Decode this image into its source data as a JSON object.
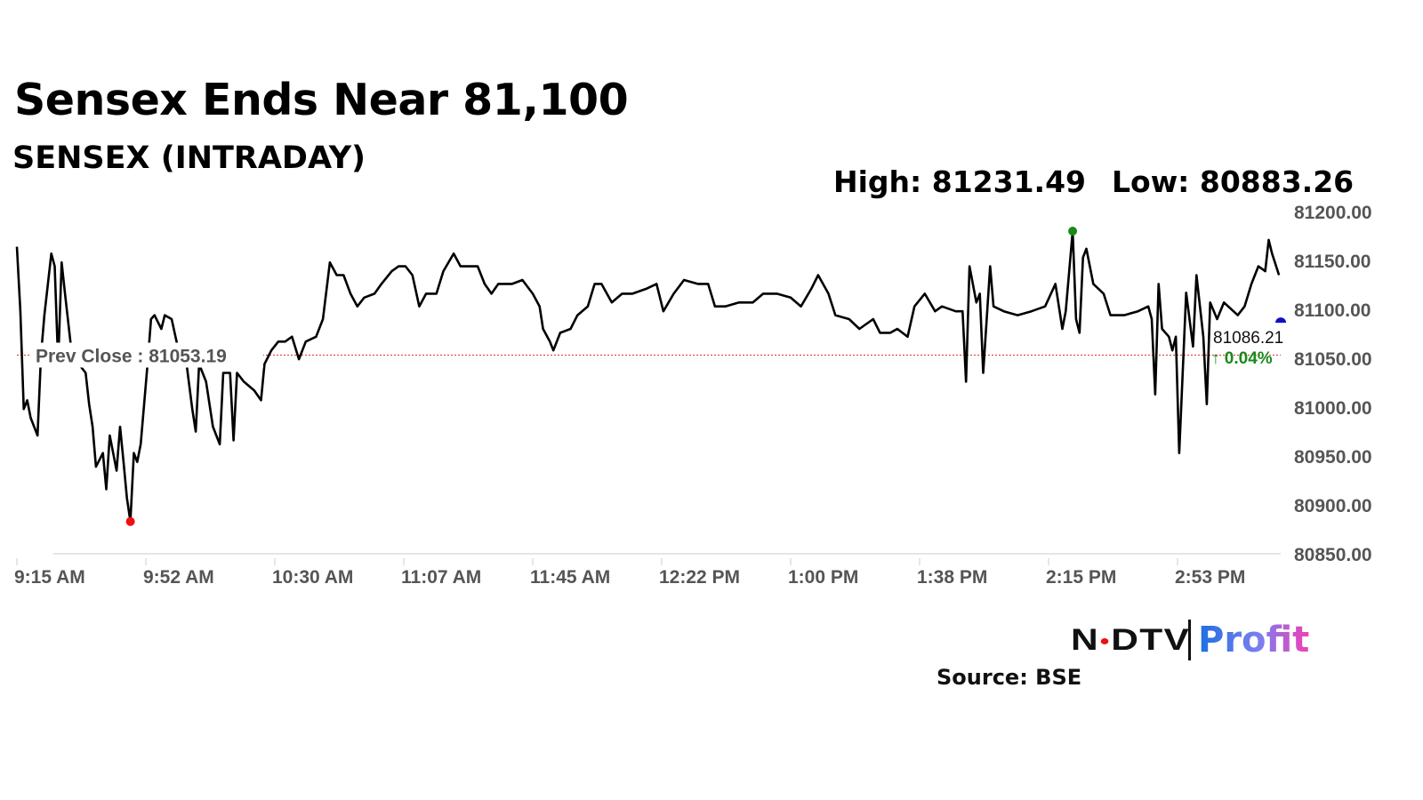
{
  "header": {
    "title": "Sensex Ends Near 81,100",
    "subtitle": "SENSEX (INTRADAY)",
    "high_label": "High: 81231.49",
    "low_label": "Low: 80883.26"
  },
  "chart_data": {
    "type": "line",
    "title": "SENSEX (INTRADAY)",
    "xlim": [
      "9:15",
      "15:30"
    ],
    "ylim": [
      80850,
      81200
    ],
    "x_tick_labels": [
      "9:15 AM",
      "9:52 AM",
      "10:30 AM",
      "11:07 AM",
      "11:45 AM",
      "12:22 PM",
      "1:00 PM",
      "1:38 PM",
      "2:15 PM",
      "2:53 PM"
    ],
    "x_ticks": [
      "9:15",
      "9:52",
      "10:30",
      "11:07",
      "11:45",
      "12:22",
      "13:00",
      "13:38",
      "14:15",
      "14:53"
    ],
    "y_ticks": [
      81200,
      81150,
      81100,
      81050,
      81000,
      80950,
      80900,
      80850
    ],
    "y_tick_labels": [
      "81200.00",
      "81150.00",
      "81100.00",
      "81050.00",
      "81000.00",
      "80950.00",
      "80900.00",
      "80850.00"
    ],
    "grid": false,
    "prev_close": 81053.19,
    "prev_close_label": "Prev Close : 81053.19",
    "last_value_label": "81086.21",
    "change_label": "↑ 0.04%",
    "colors": {
      "line": "#000000",
      "prev_close": "#e03030",
      "high_marker": "#1a8a1a",
      "low_marker": "#ee1111",
      "last_marker": "#1010c0",
      "change": "#1a8a1a",
      "axis_text": "#555555"
    },
    "series": [
      {
        "x": [
          "9:15",
          "9:16",
          "9:17",
          "9:18",
          "9:19",
          "9:21",
          "9:22",
          "9:23",
          "9:25",
          "9:26",
          "9:27",
          "9:28",
          "9:29",
          "9:31",
          "9:33",
          "9:35",
          "9:36",
          "9:37",
          "9:38",
          "9:40",
          "9:41",
          "9:42",
          "9:44",
          "9:45",
          "9:46",
          "9:47",
          "9:48",
          "9:49",
          "9:50",
          "9:51",
          "9:53",
          "9:54",
          "9:55",
          "9:57",
          "9:58",
          "10:00",
          "10:02",
          "10:04",
          "10:06",
          "10:07",
          "10:08",
          "10:10",
          "10:12",
          "10:14",
          "10:15",
          "10:17",
          "10:18",
          "10:19",
          "10:21",
          "10:24",
          "10:26",
          "10:27",
          "10:29",
          "10:31",
          "10:33",
          "10:35",
          "10:37",
          "10:39",
          "10:42",
          "10:44",
          "10:46",
          "10:48",
          "10:50",
          "10:52",
          "10:54",
          "10:56",
          "10:59",
          "11:01",
          "11:04",
          "11:06",
          "11:08",
          "11:10",
          "11:12",
          "11:14",
          "11:17",
          "11:19",
          "11:22",
          "11:24",
          "11:27",
          "11:29",
          "11:31",
          "11:33",
          "11:35",
          "11:39",
          "11:42",
          "11:45",
          "11:47",
          "11:48",
          "11:50",
          "11:51",
          "11:53",
          "11:56",
          "11:58",
          "12:01",
          "12:03",
          "12:05",
          "12:08",
          "12:11",
          "12:14",
          "12:18",
          "12:21",
          "12:23",
          "12:26",
          "12:29",
          "12:33",
          "12:36",
          "12:38",
          "12:41",
          "12:45",
          "12:49",
          "12:52",
          "12:56",
          "13:00",
          "13:03",
          "13:06",
          "13:08",
          "13:11",
          "13:13",
          "13:17",
          "13:20",
          "13:24",
          "13:26",
          "13:29",
          "13:31",
          "13:34",
          "13:36",
          "13:39",
          "13:42",
          "13:44",
          "13:48",
          "13:50",
          "13:51",
          "13:52",
          "13:54",
          "13:55",
          "13:56",
          "13:58",
          "13:59",
          "14:02",
          "14:06",
          "14:10",
          "14:14",
          "14:17",
          "14:19",
          "14:20",
          "14:22",
          "14:23",
          "14:24",
          "14:25",
          "14:26",
          "14:28",
          "14:31",
          "14:33",
          "14:37",
          "14:41",
          "14:44",
          "14:45",
          "14:46",
          "14:47",
          "14:48",
          "14:50",
          "14:51",
          "14:52",
          "14:53",
          "14:55",
          "14:57",
          "14:58",
          "15:00",
          "15:01",
          "15:02",
          "15:04",
          "15:06",
          "15:10",
          "15:12",
          "15:14",
          "15:16",
          "15:18",
          "15:19",
          "15:20",
          "15:22"
        ],
        "y": [
          81164,
          81098,
          80998,
          81007,
          80989,
          80971,
          81053,
          81094,
          81157,
          81144,
          81044,
          81148,
          81116,
          81053,
          81044,
          81035,
          81003,
          80980,
          80939,
          80953,
          80916,
          80971,
          80935,
          80980,
          80944,
          80907,
          80883,
          80953,
          80944,
          80962,
          81044,
          81090,
          81094,
          81080,
          81094,
          81090,
          81058,
          81053,
          80998,
          80975,
          81044,
          81026,
          80980,
          80962,
          81035,
          81035,
          80966,
          81035,
          81026,
          81017,
          81007,
          81044,
          81058,
          81067,
          81067,
          81072,
          81049,
          81067,
          81072,
          81090,
          81148,
          81135,
          81135,
          81116,
          81103,
          81112,
          81116,
          81126,
          81139,
          81144,
          81144,
          81135,
          81103,
          81116,
          81116,
          81139,
          81157,
          81144,
          81144,
          81144,
          81126,
          81116,
          81126,
          81126,
          81130,
          81116,
          81103,
          81080,
          81067,
          81058,
          81076,
          81080,
          81094,
          81103,
          81126,
          81126,
          81107,
          81116,
          81116,
          81121,
          81126,
          81098,
          81116,
          81130,
          81126,
          81126,
          81103,
          81103,
          81107,
          81107,
          81116,
          81116,
          81112,
          81103,
          81121,
          81135,
          81116,
          81094,
          81090,
          81080,
          81090,
          81076,
          81076,
          81080,
          81072,
          81103,
          81116,
          81098,
          81103,
          81098,
          81098,
          81026,
          81144,
          81107,
          81116,
          81035,
          81144,
          81103,
          81098,
          81094,
          81098,
          81103,
          81126,
          81080,
          81098,
          81180,
          81090,
          81076,
          81153,
          81162,
          81126,
          81116,
          81094,
          81094,
          81098,
          81103,
          81090,
          81013,
          81126,
          81080,
          81072,
          81058,
          81072,
          80953,
          81117,
          81062,
          81135,
          81072,
          81003,
          81107,
          81090,
          81107,
          81094,
          81103,
          81126,
          81144,
          81139,
          81171,
          81157,
          81135
        ]
      }
    ],
    "last_value": 81086.21
  },
  "footer": {
    "logo_text_left": "NDTV",
    "logo_text_right": "Profit",
    "source": "Source: BSE"
  }
}
